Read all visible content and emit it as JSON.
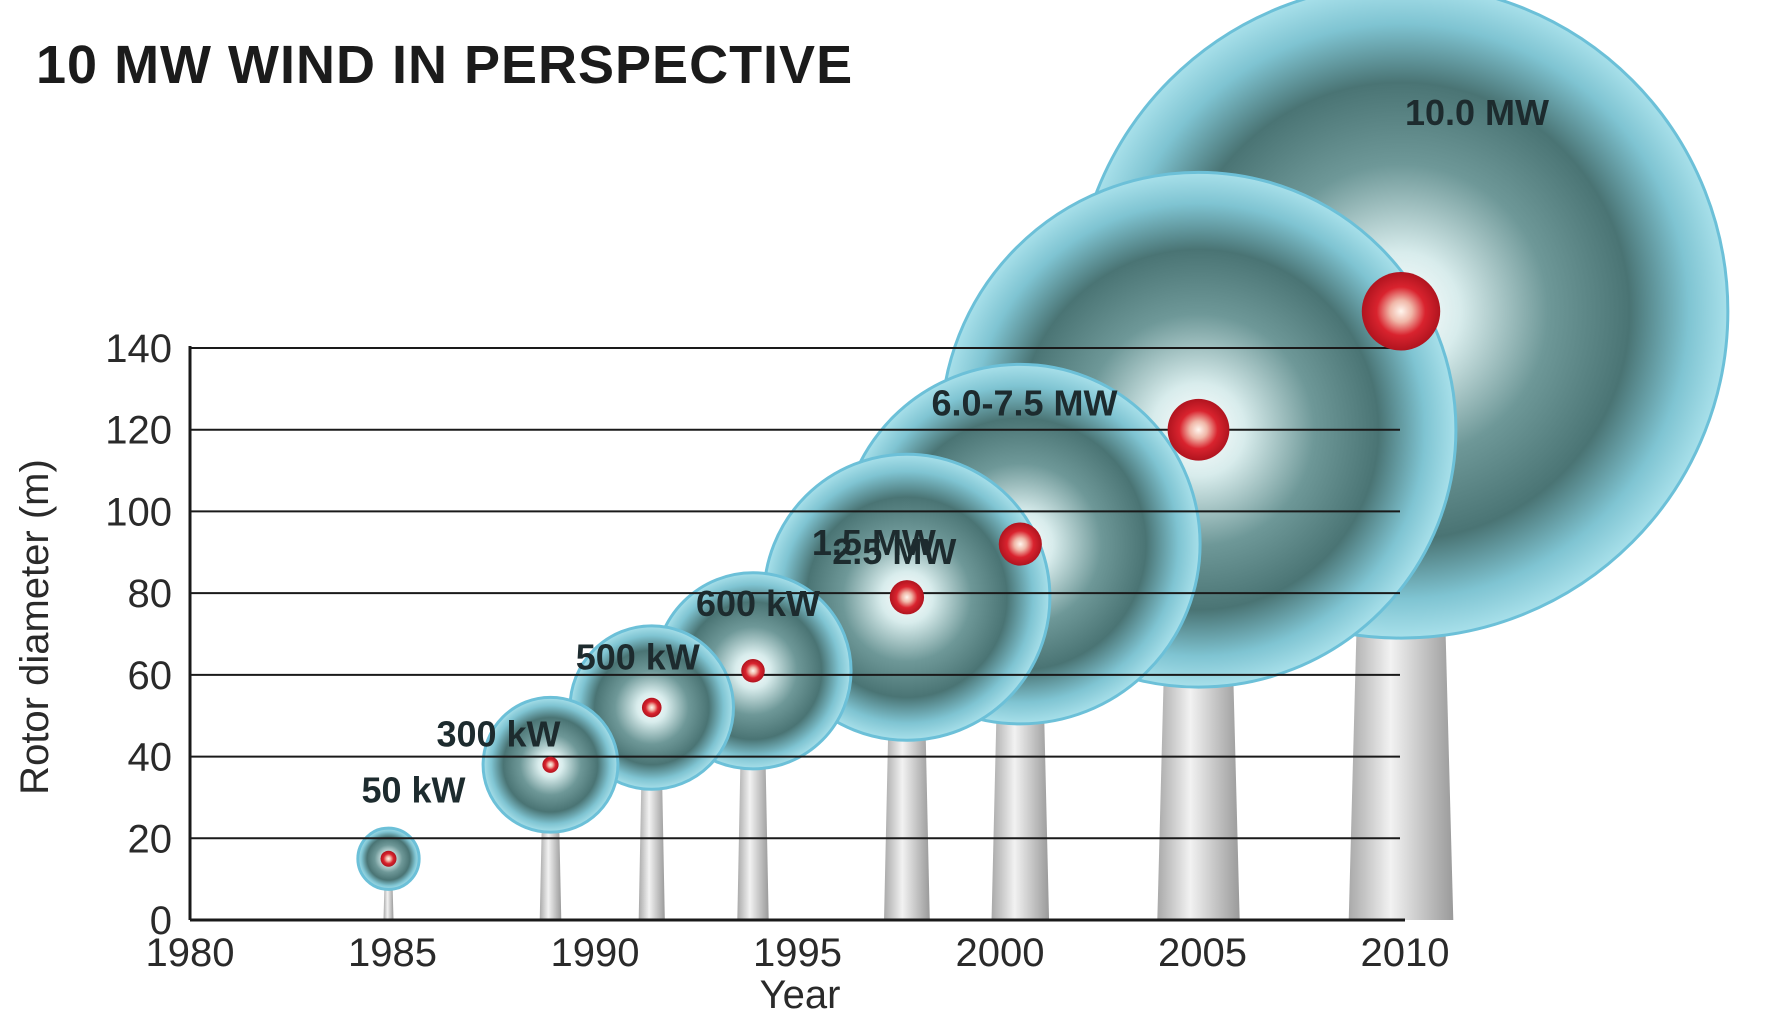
{
  "title": "10 MW WIND IN PERSPECTIVE",
  "chart_data": {
    "type": "scatter",
    "title": "10 MW WIND IN PERSPECTIVE",
    "xlabel": "Year",
    "ylabel": "Rotor diameter (m)",
    "xlim": [
      1980,
      2010
    ],
    "ylim": [
      0,
      140
    ],
    "xticks": [
      "1980",
      "1985",
      "1990",
      "1995",
      "2000",
      "2005",
      "2010"
    ],
    "yticks": [
      "0",
      "20",
      "40",
      "60",
      "80",
      "100",
      "120",
      "140"
    ],
    "grid": true,
    "points": [
      {
        "label": "50 kW",
        "year": 1985.0,
        "diameter": 15,
        "hub_height": 15
      },
      {
        "label": "300 kW",
        "year": 1989.0,
        "diameter": 33,
        "hub_height": 38
      },
      {
        "label": "500 kW",
        "year": 1991.5,
        "diameter": 40,
        "hub_height": 52
      },
      {
        "label": "600 kW",
        "year": 1994.0,
        "diameter": 48,
        "hub_height": 61
      },
      {
        "label": "1.5 MW",
        "year": 1997.8,
        "diameter": 70,
        "hub_height": 79
      },
      {
        "label": "2.5 MW",
        "year": 2000.6,
        "diameter": 88,
        "hub_height": 92
      },
      {
        "label": "6.0-7.5 MW",
        "year": 2005.0,
        "diameter": 126,
        "hub_height": 120
      },
      {
        "label": "10.0 MW",
        "year": 2010.0,
        "diameter": 160,
        "hub_height": 149
      }
    ],
    "colors": {
      "rotor_disc": "#8fcfdc",
      "rotor_edge": "#6cc0d8",
      "rotor_shadow": "#4a6f70",
      "hub_red": "#d9232e",
      "tower": "#c8c8c8",
      "grid": "#1a1a1a"
    }
  }
}
